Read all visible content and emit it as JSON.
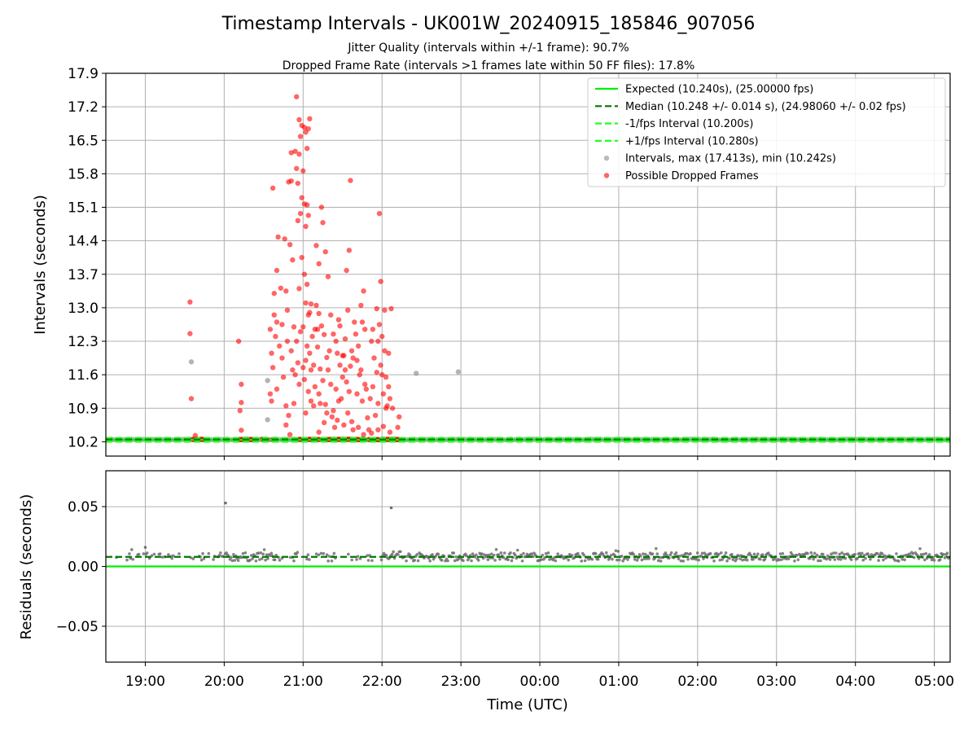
{
  "chart_data": [
    {
      "panel": "top",
      "type": "scatter",
      "title": "Timestamp Intervals - UK001W_20240915_185846_907056",
      "subtitle_1": "Jitter Quality (intervals within +/-1 frame): 90.7%",
      "subtitle_2": "Dropped Frame Rate (intervals >1 frames late within 50 FF files): 17.8%",
      "xlabel": "",
      "ylabel": "Intervals (seconds)",
      "xlim": [
        "18:30",
        "05:12"
      ],
      "ylim": [
        9.9,
        17.9
      ],
      "yticks": [
        "10.2",
        "10.9",
        "11.6",
        "12.3",
        "13.0",
        "13.7",
        "14.4",
        "15.1",
        "15.8",
        "16.5",
        "17.2",
        "17.9"
      ],
      "grid": true,
      "legend_position": "top-right",
      "legend": [
        "Expected (10.240s), (25.00000 fps)",
        "Median (10.248 +/- 0.014 s), (24.98060 +/- 0.02 fps)",
        "-1/fps Interval (10.200s)",
        "+1/fps Interval (10.280s)",
        "Intervals, max (17.413s), min (10.242s)",
        "Possible Dropped Frames"
      ],
      "reference_lines": {
        "expected": 10.24,
        "median": 10.248,
        "minus_1_fps": 10.2,
        "plus_1_fps": 10.28
      },
      "series": [
        {
          "name": "Intervals, max (17.413s), min (10.242s)",
          "points": [
            [
              "19:35",
              11.87
            ],
            [
              "20:33",
              11.48
            ],
            [
              "20:33",
              10.66
            ],
            [
              "22:26",
              11.63
            ],
            [
              "22:58",
              11.66
            ]
          ]
        },
        {
          "name": "Possible Dropped Frames",
          "points": [
            [
              "19:34",
              13.12
            ],
            [
              "19:34",
              12.46
            ],
            [
              "19:35",
              11.1
            ],
            [
              "19:38",
              10.33
            ],
            [
              "20:11",
              12.3
            ],
            [
              "20:13",
              11.4
            ],
            [
              "20:13",
              11.02
            ],
            [
              "20:12",
              10.85
            ],
            [
              "20:13",
              10.44
            ],
            [
              "20:37",
              15.5
            ],
            [
              "20:41",
              14.48
            ],
            [
              "20:40",
              13.78
            ],
            [
              "20:43",
              13.41
            ],
            [
              "20:38",
              13.3
            ],
            [
              "20:46",
              14.44
            ],
            [
              "20:47",
              13.35
            ],
            [
              "20:50",
              14.32
            ],
            [
              "20:52",
              14.0
            ],
            [
              "20:48",
              12.95
            ],
            [
              "20:38",
              12.85
            ],
            [
              "20:40",
              12.7
            ],
            [
              "20:35",
              12.55
            ],
            [
              "20:39",
              12.4
            ],
            [
              "20:42",
              12.2
            ],
            [
              "20:36",
              12.05
            ],
            [
              "20:44",
              11.95
            ],
            [
              "20:37",
              11.75
            ],
            [
              "20:45",
              11.55
            ],
            [
              "20:40",
              11.3
            ],
            [
              "20:36",
              11.05
            ],
            [
              "20:47",
              10.95
            ],
            [
              "20:49",
              10.75
            ],
            [
              "20:53",
              12.6
            ],
            [
              "20:55",
              12.3
            ],
            [
              "20:51",
              12.1
            ],
            [
              "20:56",
              11.85
            ],
            [
              "20:54",
              11.6
            ],
            [
              "20:57",
              11.4
            ],
            [
              "20:49",
              15.63
            ],
            [
              "20:51",
              15.65
            ],
            [
              "20:54",
              16.27
            ],
            [
              "20:51",
              16.24
            ],
            [
              "20:57",
              16.21
            ],
            [
              "20:55",
              15.91
            ],
            [
              "20:56",
              15.6
            ],
            [
              "20:59",
              15.3
            ],
            [
              "20:58",
              14.97
            ],
            [
              "21:02",
              14.7
            ],
            [
              "20:56",
              14.82
            ],
            [
              "20:59",
              14.05
            ],
            [
              "21:01",
              13.7
            ],
            [
              "21:03",
              13.49
            ],
            [
              "20:57",
              13.4
            ],
            [
              "21:02",
              13.1
            ],
            [
              "21:04",
              12.85
            ],
            [
              "21:00",
              12.6
            ],
            [
              "21:03",
              12.2
            ],
            [
              "21:05",
              12.05
            ],
            [
              "21:02",
              11.9
            ],
            [
              "21:06",
              11.7
            ],
            [
              "21:01",
              11.5
            ],
            [
              "21:04",
              11.25
            ],
            [
              "21:06",
              11.05
            ],
            [
              "21:02",
              10.8
            ],
            [
              "20:57",
              16.93
            ],
            [
              "20:59",
              16.81
            ],
            [
              "21:01",
              16.77
            ],
            [
              "21:04",
              16.74
            ],
            [
              "21:05",
              16.95
            ],
            [
              "20:58",
              16.58
            ],
            [
              "21:02",
              16.67
            ],
            [
              "21:03",
              16.33
            ],
            [
              "21:00",
              15.86
            ],
            [
              "21:01",
              15.17
            ],
            [
              "21:03",
              15.15
            ],
            [
              "21:04",
              14.93
            ],
            [
              "20:55",
              17.41
            ],
            [
              "21:14",
              15.1
            ],
            [
              "21:15",
              14.78
            ],
            [
              "21:10",
              14.3
            ],
            [
              "21:17",
              14.17
            ],
            [
              "21:12",
              13.92
            ],
            [
              "21:19",
              13.65
            ],
            [
              "21:10",
              13.05
            ],
            [
              "21:12",
              12.88
            ],
            [
              "21:14",
              12.62
            ],
            [
              "21:16",
              12.44
            ],
            [
              "21:11",
              12.18
            ],
            [
              "21:18",
              11.96
            ],
            [
              "21:13",
              11.72
            ],
            [
              "21:15",
              11.48
            ],
            [
              "21:12",
              11.2
            ],
            [
              "21:17",
              10.98
            ],
            [
              "21:22",
              10.72
            ],
            [
              "21:24",
              10.5
            ],
            [
              "21:21",
              12.85
            ],
            [
              "21:23",
              12.45
            ],
            [
              "21:26",
              12.05
            ],
            [
              "21:28",
              11.8
            ],
            [
              "21:30",
              11.55
            ],
            [
              "21:25",
              11.3
            ],
            [
              "21:27",
              11.05
            ],
            [
              "21:23",
              10.85
            ],
            [
              "21:36",
              15.66
            ],
            [
              "21:35",
              14.2
            ],
            [
              "21:33",
              13.78
            ],
            [
              "21:34",
              12.95
            ],
            [
              "21:28",
              12.62
            ],
            [
              "21:32",
              12.35
            ],
            [
              "21:31",
              12.0
            ],
            [
              "21:36",
              11.78
            ],
            [
              "21:33",
              11.45
            ],
            [
              "21:29",
              11.1
            ],
            [
              "21:34",
              10.8
            ],
            [
              "21:38",
              10.45
            ],
            [
              "21:40",
              12.45
            ],
            [
              "21:42",
              12.2
            ],
            [
              "21:41",
              11.9
            ],
            [
              "21:45",
              12.7
            ],
            [
              "21:46",
              13.35
            ],
            [
              "21:47",
              12.55
            ],
            [
              "21:43",
              11.6
            ],
            [
              "21:48",
              11.3
            ],
            [
              "21:45",
              11.05
            ],
            [
              "21:49",
              10.7
            ],
            [
              "21:50",
              10.45
            ],
            [
              "21:52",
              12.3
            ],
            [
              "21:54",
              11.95
            ],
            [
              "21:56",
              11.65
            ],
            [
              "21:53",
              11.35
            ],
            [
              "21:57",
              11.0
            ],
            [
              "21:55",
              10.75
            ],
            [
              "21:58",
              12.65
            ],
            [
              "22:00",
              12.4
            ],
            [
              "22:02",
              12.1
            ],
            [
              "21:59",
              11.8
            ],
            [
              "22:03",
              11.55
            ],
            [
              "22:01",
              11.2
            ],
            [
              "22:04",
              10.95
            ],
            [
              "21:56",
              12.98
            ],
            [
              "22:02",
              12.95
            ],
            [
              "22:07",
              12.98
            ],
            [
              "21:59",
              13.55
            ],
            [
              "21:58",
              14.97
            ],
            [
              "22:05",
              12.05
            ],
            [
              "22:06",
              11.1
            ],
            [
              "22:08",
              10.9
            ],
            [
              "22:13",
              10.72
            ],
            [
              "22:12",
              10.5
            ],
            [
              "21:39",
              12.7
            ],
            [
              "21:44",
              13.05
            ],
            [
              "21:37",
              12.1
            ],
            [
              "21:07",
              12.4
            ],
            [
              "21:08",
              11.8
            ],
            [
              "21:09",
              11.35
            ],
            [
              "21:06",
              13.08
            ],
            [
              "21:09",
              12.55
            ],
            [
              "21:11",
              12.55
            ],
            [
              "21:13",
              11.0
            ],
            [
              "21:19",
              11.7
            ],
            [
              "21:20",
              12.1
            ],
            [
              "21:21",
              11.4
            ],
            [
              "21:25",
              12.3
            ],
            [
              "21:27",
              12.75
            ],
            [
              "21:30",
              12.0
            ],
            [
              "21:32",
              11.7
            ],
            [
              "21:35",
              11.25
            ],
            [
              "21:38",
              11.95
            ],
            [
              "21:41",
              11.2
            ],
            [
              "21:44",
              11.7
            ],
            [
              "21:47",
              11.4
            ],
            [
              "21:51",
              11.1
            ],
            [
              "21:53",
              12.55
            ],
            [
              "21:57",
              12.3
            ],
            [
              "22:00",
              11.6
            ],
            [
              "22:03",
              10.9
            ],
            [
              "22:05",
              11.35
            ],
            [
              "20:35",
              11.2
            ],
            [
              "20:44",
              12.65
            ],
            [
              "20:48",
              12.3
            ],
            [
              "20:52",
              11.7
            ],
            [
              "20:53",
              11.0
            ],
            [
              "20:58",
              12.5
            ],
            [
              "21:00",
              11.75
            ],
            [
              "21:05",
              12.9
            ],
            [
              "21:08",
              10.95
            ],
            [
              "21:12",
              10.4
            ],
            [
              "21:16",
              10.6
            ],
            [
              "21:18",
              10.8
            ],
            [
              "21:26",
              10.65
            ],
            [
              "21:31",
              10.55
            ],
            [
              "21:37",
              10.62
            ],
            [
              "21:42",
              10.5
            ],
            [
              "21:46",
              10.35
            ],
            [
              "21:52",
              10.38
            ],
            [
              "21:57",
              10.45
            ],
            [
              "22:01",
              10.52
            ],
            [
              "22:06",
              10.4
            ],
            [
              "20:47",
              10.55
            ],
            [
              "20:50",
              10.35
            ]
          ]
        }
      ],
      "dropped_frames_baseline_ranges": [
        [
          "19:36",
          "19:45"
        ],
        [
          "20:11",
          "20:25"
        ],
        [
          "20:29",
          "20:33"
        ],
        [
          "20:37",
          "20:40"
        ],
        [
          "20:57",
          "21:00"
        ],
        [
          "21:04",
          "21:12"
        ],
        [
          "21:17",
          "21:46"
        ],
        [
          "21:50",
          "22:13"
        ]
      ],
      "baseline_interval_value": 10.243
    },
    {
      "panel": "bottom",
      "type": "scatter",
      "xlabel": "Time (UTC)",
      "ylabel": "Residuals (seconds)",
      "xlim": [
        "18:30",
        "05:12"
      ],
      "ylim": [
        -0.08,
        0.08
      ],
      "yticks": [
        "−0.05",
        "0.00",
        "0.05"
      ],
      "xticks": [
        "19:00",
        "20:00",
        "21:00",
        "22:00",
        "23:00",
        "00:00",
        "01:00",
        "02:00",
        "03:00",
        "04:00",
        "05:00"
      ],
      "grid": true,
      "reference_lines": {
        "zero": 0.0,
        "median": 0.008
      },
      "series": [
        {
          "name": "",
          "outliers": [
            [
              "19:00",
              0.016
            ],
            [
              "20:01",
              0.053
            ],
            [
              "22:07",
              0.049
            ]
          ],
          "band_center": 0.008,
          "band_spread": 0.0035
        }
      ]
    }
  ],
  "colors": {
    "expected": "#00ee00",
    "median": "#007700",
    "fps_interval": "#22ff22",
    "intervals": "#8c8c8c",
    "dropped": "#ff0000",
    "residuals": "#6e6e6e"
  }
}
